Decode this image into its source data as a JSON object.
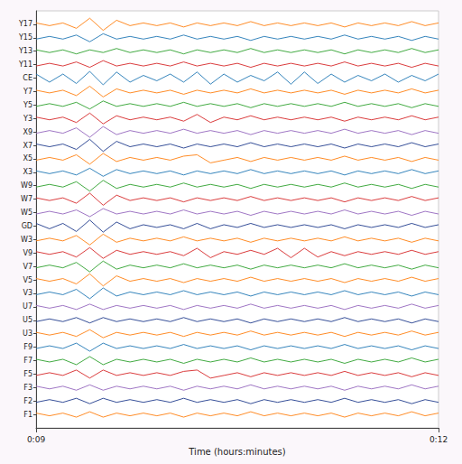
{
  "chart_data": {
    "type": "line",
    "x_label": "Time (hours:minutes)",
    "x": [
      9,
      9.1,
      9.2,
      9.3,
      9.4,
      9.5,
      9.6,
      9.7,
      9.8,
      9.9,
      10,
      10.1,
      10.2,
      10.3,
      10.4,
      10.5,
      10.6,
      10.7,
      10.8,
      10.9,
      11,
      11.1,
      11.2,
      11.3,
      11.4,
      11.5,
      11.6,
      11.7,
      11.8,
      11.9,
      12
    ],
    "xlim": [
      9,
      12
    ],
    "xticks": [
      {
        "value": 9,
        "label": "0:09"
      },
      {
        "value": 12,
        "label": "0:12"
      }
    ],
    "ylim": [
      0,
      31
    ],
    "yticks": [
      {
        "value": 30,
        "label": "Y17"
      },
      {
        "value": 29,
        "label": "Y15"
      },
      {
        "value": 28,
        "label": "Y13"
      },
      {
        "value": 27,
        "label": "Y11"
      },
      {
        "value": 26,
        "label": "CE"
      },
      {
        "value": 25,
        "label": "Y7"
      },
      {
        "value": 24,
        "label": "Y5"
      },
      {
        "value": 23,
        "label": "Y3"
      },
      {
        "value": 22,
        "label": "X9"
      },
      {
        "value": 21,
        "label": "X7"
      },
      {
        "value": 20,
        "label": "X5"
      },
      {
        "value": 19,
        "label": "X3"
      },
      {
        "value": 18,
        "label": "W9"
      },
      {
        "value": 17,
        "label": "W7"
      },
      {
        "value": 16,
        "label": "W5"
      },
      {
        "value": 15,
        "label": "GD"
      },
      {
        "value": 14,
        "label": "W3"
      },
      {
        "value": 13,
        "label": "V9"
      },
      {
        "value": 12,
        "label": "V7"
      },
      {
        "value": 11,
        "label": "V5"
      },
      {
        "value": 10,
        "label": "V3"
      },
      {
        "value": 9,
        "label": "U7"
      },
      {
        "value": 8,
        "label": "U5"
      },
      {
        "value": 7,
        "label": "U3"
      },
      {
        "value": 6,
        "label": "F9"
      },
      {
        "value": 5,
        "label": "F7"
      },
      {
        "value": 4,
        "label": "F5"
      },
      {
        "value": 3,
        "label": "F3"
      },
      {
        "value": 2,
        "label": "F2"
      },
      {
        "value": 1,
        "label": "F1"
      }
    ],
    "grid": false,
    "series": [
      {
        "color": "#ff7f0e",
        "values": [
          30.1,
          29.9,
          30.1,
          29.7,
          30.45,
          29.55,
          30.3,
          29.9,
          30.1,
          29.9,
          30.1,
          29.8,
          30.1,
          29.9,
          30.1,
          29.9,
          30.2,
          29.9,
          30.1,
          29.9,
          30.1,
          29.9,
          30.1,
          29.8,
          30.1,
          29.9,
          30.1,
          29.9,
          30.2,
          29.9,
          30.1
        ]
      },
      {
        "color": "#1f77b4",
        "values": [
          28.9,
          29.1,
          28.9,
          29.2,
          28.7,
          29.3,
          28.9,
          29.1,
          28.9,
          29.1,
          28.9,
          29.2,
          28.9,
          29.1,
          28.9,
          29.1,
          28.8,
          29.1,
          28.9,
          29.1,
          28.9,
          29.1,
          28.9,
          29.2,
          28.9,
          29.1,
          28.9,
          29.1,
          28.8,
          29.1,
          28.9
        ]
      },
      {
        "color": "#2ca02c",
        "values": [
          28.1,
          27.9,
          28.1,
          27.8,
          28.1,
          27.9,
          28.2,
          27.9,
          28.1,
          27.9,
          28.1,
          27.8,
          28.1,
          27.9,
          28.1,
          27.9,
          28.2,
          27.9,
          28.1,
          27.9,
          28.1,
          27.9,
          28.1,
          27.8,
          28.1,
          27.9,
          28.1,
          27.9,
          28.2,
          27.9,
          28.1
        ]
      },
      {
        "color": "#d62728",
        "values": [
          26.9,
          27.1,
          26.9,
          27.2,
          26.8,
          27.3,
          26.9,
          27.1,
          26.9,
          27.1,
          26.9,
          27.2,
          26.9,
          27.1,
          26.9,
          27.1,
          26.8,
          27.1,
          26.9,
          27.1,
          26.9,
          27.1,
          26.9,
          27.2,
          26.9,
          27.1,
          26.9,
          27.1,
          26.8,
          27.1,
          26.9
        ]
      },
      {
        "color": "#1f77b4",
        "values": [
          26.3,
          25.7,
          26.3,
          25.6,
          26.5,
          25.5,
          26.45,
          25.7,
          26.2,
          25.8,
          26.3,
          25.7,
          26.45,
          25.55,
          26.3,
          25.7,
          26.2,
          25.8,
          26.45,
          25.55,
          26.45,
          25.6,
          26.3,
          25.7,
          26.2,
          25.8,
          26.3,
          25.7,
          26.2,
          25.8,
          26.3
        ]
      },
      {
        "color": "#ff7f0e",
        "values": [
          25.1,
          24.9,
          25.1,
          24.7,
          25.4,
          24.6,
          25.2,
          24.9,
          25.1,
          24.9,
          25.1,
          24.8,
          25.1,
          24.9,
          25.1,
          24.9,
          25.2,
          24.9,
          25.1,
          24.9,
          25.1,
          24.9,
          25.1,
          24.8,
          25.1,
          24.9,
          25.1,
          24.9,
          25.2,
          24.9,
          25.1
        ]
      },
      {
        "color": "#2ca02c",
        "values": [
          23.9,
          24.1,
          23.9,
          24.2,
          23.7,
          24.3,
          23.9,
          24.1,
          23.9,
          24.1,
          23.9,
          24.2,
          23.9,
          24.1,
          23.9,
          24.1,
          23.8,
          24.1,
          23.9,
          24.1,
          23.9,
          24.1,
          23.9,
          24.2,
          23.9,
          24.1,
          23.9,
          24.1,
          23.8,
          24.1,
          23.9
        ]
      },
      {
        "color": "#d62728",
        "values": [
          23.1,
          22.9,
          23.1,
          22.7,
          23.4,
          22.6,
          23.2,
          22.9,
          23.1,
          22.9,
          23.1,
          22.8,
          23.3,
          22.7,
          23.1,
          22.9,
          23.2,
          22.9,
          23.1,
          22.9,
          23.1,
          22.9,
          23.1,
          22.8,
          23.1,
          22.9,
          23.1,
          22.9,
          23.2,
          22.9,
          23.1
        ]
      },
      {
        "color": "#9467bd",
        "values": [
          21.9,
          22.1,
          21.9,
          22.3,
          21.6,
          22.4,
          21.8,
          22.1,
          21.9,
          22.1,
          21.9,
          22.2,
          21.9,
          22.1,
          21.9,
          22.1,
          21.8,
          22.1,
          21.9,
          22.1,
          21.9,
          22.1,
          21.9,
          22.2,
          21.9,
          22.1,
          21.9,
          22.1,
          21.8,
          22.1,
          21.9
        ]
      },
      {
        "color": "#1f3b8c",
        "values": [
          21.1,
          20.9,
          21.1,
          20.7,
          21.45,
          20.55,
          21.3,
          20.9,
          21.1,
          20.9,
          21.1,
          20.8,
          21.1,
          20.9,
          21.1,
          20.9,
          21.2,
          20.9,
          21.1,
          20.9,
          21.1,
          20.9,
          21.1,
          20.8,
          21.1,
          20.9,
          21.1,
          20.9,
          21.2,
          20.9,
          21.1
        ]
      },
      {
        "color": "#ff7f0e",
        "values": [
          19.9,
          20.1,
          19.9,
          20.3,
          19.6,
          20.4,
          19.8,
          20.1,
          19.9,
          20.1,
          19.9,
          20.2,
          20.3,
          19.7,
          19.9,
          20.1,
          19.8,
          20.1,
          19.9,
          20.1,
          19.9,
          20.1,
          19.9,
          20.2,
          19.9,
          20.1,
          19.9,
          20.1,
          19.8,
          20.1,
          19.9
        ]
      },
      {
        "color": "#1f77b4",
        "values": [
          19.1,
          18.9,
          19.1,
          18.8,
          19.3,
          18.7,
          19.2,
          18.9,
          19.1,
          18.9,
          19.1,
          18.8,
          19.1,
          18.9,
          19.1,
          18.9,
          19.2,
          18.9,
          19.1,
          18.9,
          19.1,
          18.9,
          19.1,
          18.8,
          19.1,
          18.9,
          19.1,
          18.9,
          19.2,
          18.9,
          19.1
        ]
      },
      {
        "color": "#2ca02c",
        "values": [
          17.9,
          18.1,
          17.9,
          18.3,
          17.6,
          18.4,
          17.8,
          18.1,
          17.9,
          18.1,
          17.9,
          18.2,
          17.9,
          18.1,
          17.9,
          18.1,
          17.8,
          18.1,
          17.9,
          18.1,
          17.9,
          18.1,
          17.9,
          18.2,
          17.9,
          18.1,
          17.9,
          18.1,
          17.8,
          18.1,
          17.9
        ]
      },
      {
        "color": "#d62728",
        "values": [
          17.1,
          16.9,
          17.1,
          16.7,
          17.45,
          16.55,
          17.3,
          16.9,
          17.1,
          16.9,
          17.1,
          16.8,
          17.1,
          16.9,
          17.1,
          16.9,
          17.2,
          16.9,
          17.1,
          16.9,
          17.1,
          16.9,
          17.1,
          16.8,
          17.1,
          16.9,
          17.1,
          16.9,
          17.2,
          16.9,
          17.1
        ]
      },
      {
        "color": "#9467bd",
        "values": [
          15.9,
          16.1,
          15.9,
          16.2,
          15.7,
          16.3,
          15.9,
          16.1,
          15.9,
          16.1,
          15.9,
          16.2,
          15.9,
          16.1,
          15.9,
          16.1,
          15.8,
          16.1,
          15.9,
          16.1,
          15.9,
          16.1,
          15.9,
          16.2,
          15.9,
          16.1,
          15.9,
          16.1,
          15.8,
          16.1,
          15.9
        ]
      },
      {
        "color": "#1f3b8c",
        "values": [
          15.2,
          14.8,
          15.2,
          14.6,
          15.45,
          14.55,
          15.3,
          14.8,
          15.1,
          14.9,
          15.1,
          14.8,
          15.2,
          14.8,
          15.1,
          14.9,
          15.2,
          14.9,
          15.1,
          14.9,
          15.1,
          14.9,
          15.1,
          14.8,
          15.1,
          14.9,
          15.1,
          14.9,
          15.2,
          14.9,
          15.1
        ]
      },
      {
        "color": "#ff7f0e",
        "values": [
          13.9,
          14.1,
          13.9,
          14.3,
          13.6,
          14.4,
          13.8,
          14.1,
          13.9,
          14.1,
          13.9,
          14.2,
          13.9,
          14.1,
          13.9,
          14.1,
          13.8,
          14.1,
          13.9,
          14.1,
          13.9,
          14.1,
          13.9,
          14.2,
          13.9,
          14.1,
          13.9,
          14.1,
          13.8,
          14.1,
          13.9
        ]
      },
      {
        "color": "#d62728",
        "values": [
          13.1,
          12.9,
          13.1,
          12.7,
          13.4,
          12.6,
          13.2,
          12.9,
          13.1,
          12.9,
          13.1,
          12.8,
          13.35,
          12.65,
          13.1,
          12.9,
          13.2,
          12.9,
          13.35,
          12.65,
          13.35,
          12.7,
          13.1,
          12.8,
          13.1,
          12.9,
          13.1,
          12.9,
          13.2,
          12.9,
          13.1
        ]
      },
      {
        "color": "#2ca02c",
        "values": [
          11.9,
          12.1,
          11.9,
          12.3,
          11.6,
          12.4,
          11.8,
          12.1,
          11.9,
          12.1,
          11.9,
          12.2,
          11.9,
          12.1,
          11.9,
          12.1,
          11.8,
          12.1,
          11.9,
          12.1,
          11.9,
          12.1,
          11.9,
          12.2,
          11.9,
          12.1,
          11.9,
          12.1,
          11.8,
          12.1,
          11.9
        ]
      },
      {
        "color": "#ff7f0e",
        "values": [
          11.1,
          10.9,
          11.1,
          10.7,
          11.45,
          10.55,
          11.3,
          10.9,
          11.1,
          10.9,
          11.1,
          10.8,
          11.1,
          10.9,
          11.1,
          10.9,
          11.2,
          10.9,
          11.1,
          10.9,
          11.1,
          10.9,
          11.1,
          10.8,
          11.1,
          10.9,
          11.1,
          10.9,
          11.2,
          10.9,
          11.1
        ]
      },
      {
        "color": "#1f77b4",
        "values": [
          9.9,
          10.1,
          9.9,
          10.3,
          9.6,
          10.4,
          9.8,
          10.1,
          9.9,
          10.1,
          9.9,
          10.2,
          9.9,
          10.1,
          9.9,
          10.1,
          9.8,
          10.1,
          9.9,
          10.1,
          9.9,
          10.1,
          9.9,
          10.2,
          9.9,
          10.1,
          9.9,
          10.1,
          9.8,
          10.1,
          9.9
        ]
      },
      {
        "color": "#9467bd",
        "values": [
          9.1,
          8.9,
          9.1,
          8.8,
          9.2,
          8.8,
          9.1,
          8.9,
          9.1,
          8.9,
          9.1,
          8.8,
          9.1,
          8.9,
          9.1,
          8.9,
          9.2,
          8.9,
          9.1,
          8.9,
          9.1,
          8.9,
          9.1,
          8.8,
          9.1,
          8.9,
          9.1,
          8.9,
          9.2,
          8.9,
          9.1
        ]
      },
      {
        "color": "#1f3b8c",
        "values": [
          7.9,
          8.1,
          7.9,
          8.2,
          7.8,
          8.2,
          7.9,
          8.1,
          7.9,
          8.1,
          7.9,
          8.2,
          7.9,
          8.1,
          7.9,
          8.1,
          7.8,
          8.1,
          7.9,
          8.1,
          7.9,
          8.1,
          7.9,
          8.2,
          7.9,
          8.1,
          7.9,
          8.1,
          7.8,
          8.1,
          7.9
        ]
      },
      {
        "color": "#ff7f0e",
        "values": [
          7.1,
          6.9,
          7.1,
          6.8,
          7.3,
          6.7,
          7.1,
          6.9,
          7.1,
          6.9,
          7.1,
          6.8,
          7.1,
          6.9,
          7.1,
          6.9,
          7.2,
          6.9,
          7.1,
          6.9,
          7.1,
          6.9,
          7.1,
          6.8,
          7.1,
          6.9,
          7.1,
          6.9,
          7.2,
          6.9,
          7.1
        ]
      },
      {
        "color": "#1f77b4",
        "values": [
          5.9,
          6.1,
          5.9,
          6.3,
          5.7,
          6.3,
          5.9,
          6.1,
          5.9,
          6.1,
          5.9,
          6.2,
          5.9,
          6.1,
          5.9,
          6.1,
          5.8,
          6.1,
          5.9,
          6.1,
          5.9,
          6.1,
          5.9,
          6.2,
          5.9,
          6.1,
          5.9,
          6.1,
          5.8,
          6.1,
          5.9
        ]
      },
      {
        "color": "#2ca02c",
        "values": [
          5.1,
          4.9,
          5.1,
          4.7,
          5.3,
          4.7,
          5.1,
          4.9,
          5.1,
          4.9,
          5.1,
          4.8,
          5.1,
          4.9,
          5.1,
          4.9,
          5.2,
          4.9,
          5.1,
          4.9,
          5.1,
          4.9,
          5.1,
          4.8,
          5.1,
          4.9,
          5.1,
          4.9,
          5.2,
          4.9,
          5.1
        ]
      },
      {
        "color": "#d62728",
        "values": [
          3.9,
          4.1,
          3.9,
          4.3,
          3.7,
          4.3,
          3.9,
          4.1,
          3.9,
          4.1,
          3.9,
          4.2,
          4.3,
          3.7,
          3.9,
          4.1,
          3.8,
          4.1,
          3.9,
          4.1,
          3.9,
          4.1,
          3.9,
          4.2,
          3.9,
          4.1,
          3.9,
          4.1,
          3.8,
          4.1,
          3.9
        ]
      },
      {
        "color": "#9467bd",
        "values": [
          3.1,
          2.9,
          3.1,
          2.8,
          3.2,
          2.8,
          3.1,
          2.9,
          3.1,
          2.9,
          3.1,
          2.8,
          3.1,
          2.9,
          3.1,
          2.9,
          3.2,
          2.9,
          3.1,
          2.9,
          3.1,
          2.9,
          3.1,
          2.8,
          3.1,
          2.9,
          3.1,
          2.9,
          3.2,
          2.9,
          3.1
        ]
      },
      {
        "color": "#1f3b8c",
        "values": [
          1.9,
          2.1,
          1.9,
          2.2,
          1.8,
          2.2,
          1.9,
          2.1,
          1.9,
          2.1,
          1.9,
          2.2,
          1.9,
          2.1,
          1.9,
          2.1,
          1.8,
          2.1,
          1.9,
          2.1,
          1.9,
          2.1,
          1.9,
          2.2,
          1.9,
          2.1,
          1.9,
          2.1,
          1.8,
          2.1,
          1.9
        ]
      },
      {
        "color": "#ff7f0e",
        "values": [
          1.1,
          0.9,
          1.1,
          0.8,
          1.2,
          0.8,
          1.1,
          0.9,
          1.1,
          0.9,
          1.1,
          0.8,
          1.1,
          0.9,
          1.1,
          0.9,
          1.2,
          0.9,
          1.1,
          0.9,
          1.1,
          0.9,
          1.1,
          0.8,
          1.1,
          0.9,
          1.1,
          0.9,
          1.2,
          0.9,
          1.1
        ]
      }
    ]
  }
}
